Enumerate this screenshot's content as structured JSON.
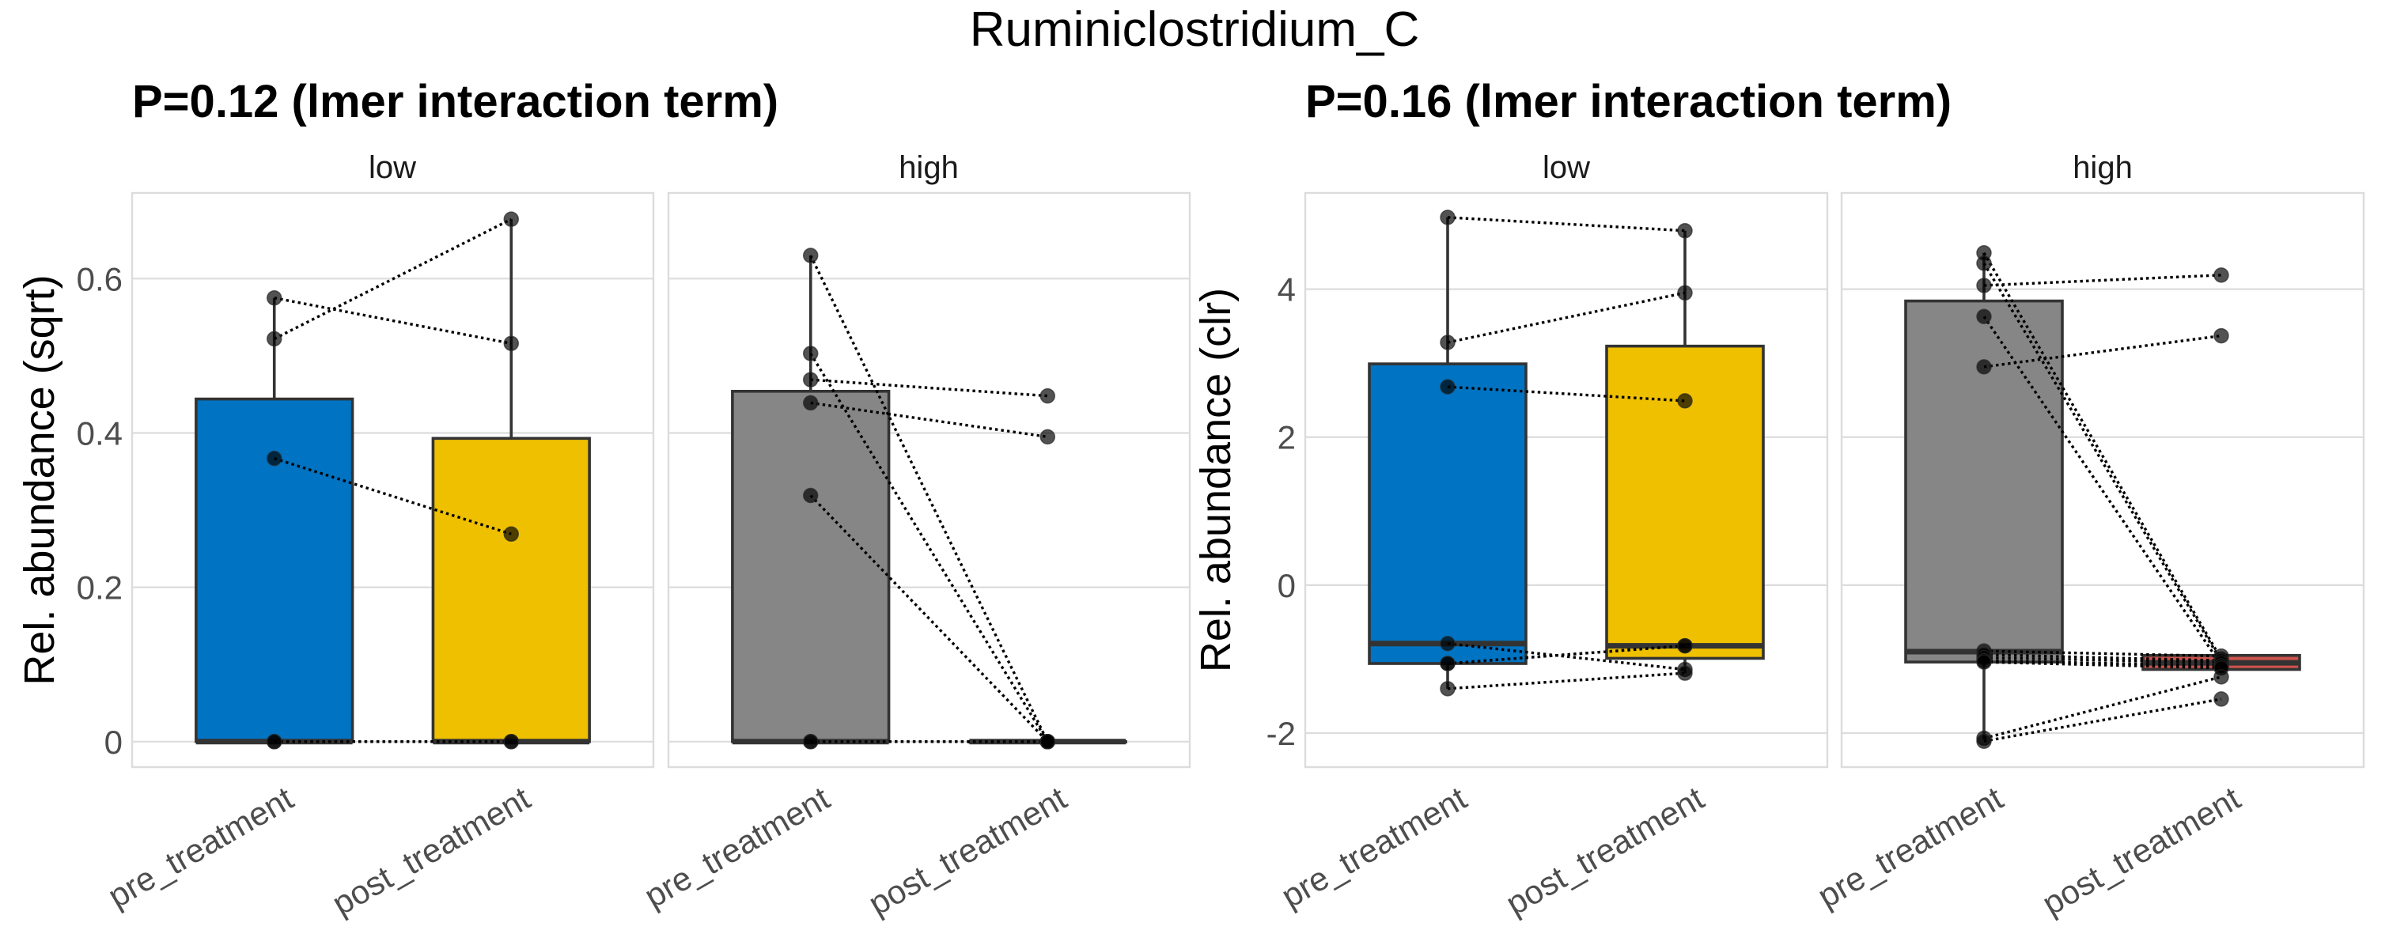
{
  "chart_data": {
    "type": "box",
    "title": "Ruminiclostridium_C",
    "panels": [
      {
        "subtitle": "P=0.12 (lmer interaction term)",
        "ylabel": "Rel. abundance (sqrt)",
        "ylim": [
          -0.033,
          0.711
        ],
        "yticks": [
          0,
          0.2,
          0.4,
          0.6
        ],
        "ytick_labels": [
          "0",
          "0.2",
          "0.4",
          "0.6"
        ],
        "grid": true,
        "facets": [
          {
            "label": "low",
            "categories": [
              "pre_treatment",
              "post_treatment"
            ],
            "boxes": [
              {
                "category": "pre_treatment",
                "color": "#0073C2",
                "q1": 0,
                "median": 0,
                "q3": 0.444,
                "whisker_low": 0,
                "whisker_high": 0.575
              },
              {
                "category": "post_treatment",
                "color": "#EFC000",
                "q1": 0,
                "median": 0,
                "q3": 0.393,
                "whisker_low": 0,
                "whisker_high": 0.677
              }
            ],
            "pairs": [
              {
                "pre": 0.522,
                "post": 0.677
              },
              {
                "pre": 0.575,
                "post": 0.516
              },
              {
                "pre": 0.367,
                "post": 0.269
              },
              {
                "pre": 0,
                "post": 0
              },
              {
                "pre": 0,
                "post": 0
              }
            ]
          },
          {
            "label": "high",
            "categories": [
              "pre_treatment",
              "post_treatment"
            ],
            "boxes": [
              {
                "category": "pre_treatment",
                "color": "#868686",
                "q1": 0,
                "median": 0,
                "q3": 0.454,
                "whisker_low": 0,
                "whisker_high": 0.63
              },
              {
                "category": "post_treatment",
                "color": "#CD534C",
                "q1": 0,
                "median": 0,
                "q3": 0,
                "whisker_low": 0,
                "whisker_high": 0
              }
            ],
            "pairs": [
              {
                "pre": 0.63,
                "post": 0
              },
              {
                "pre": 0.503,
                "post": 0
              },
              {
                "pre": 0.469,
                "post": 0.448
              },
              {
                "pre": 0.439,
                "post": 0.395
              },
              {
                "pre": 0.319,
                "post": 0
              },
              {
                "pre": 0,
                "post": 0
              },
              {
                "pre": 0,
                "post": 0
              }
            ]
          }
        ]
      },
      {
        "subtitle": "P=0.16 (lmer interaction term)",
        "ylabel": "Rel. abundance (clr)",
        "ylim": [
          -2.46,
          5.3
        ],
        "yticks": [
          -2,
          0,
          2,
          4
        ],
        "ytick_labels": [
          "-2",
          "0",
          "2",
          "4"
        ],
        "grid": true,
        "facets": [
          {
            "label": "low",
            "categories": [
              "pre_treatment",
              "post_treatment"
            ],
            "boxes": [
              {
                "category": "pre_treatment",
                "color": "#0073C2",
                "q1": -1.06,
                "median": -0.79,
                "q3": 2.99,
                "whisker_low": -1.4,
                "whisker_high": 4.97
              },
              {
                "category": "post_treatment",
                "color": "#EFC000",
                "q1": -0.99,
                "median": -0.82,
                "q3": 3.23,
                "whisker_low": -1.19,
                "whisker_high": 4.79
              }
            ],
            "pairs": [
              {
                "pre": 4.97,
                "post": 4.79
              },
              {
                "pre": 3.28,
                "post": 3.95
              },
              {
                "pre": 2.68,
                "post": 2.49
              },
              {
                "pre": -0.79,
                "post": -1.14
              },
              {
                "pre": -1.06,
                "post": -0.82
              },
              {
                "pre": -1.06,
                "post": -0.82
              },
              {
                "pre": -1.4,
                "post": -1.19
              }
            ]
          },
          {
            "label": "high",
            "categories": [
              "pre_treatment",
              "post_treatment"
            ],
            "boxes": [
              {
                "category": "pre_treatment",
                "color": "#868686",
                "q1": -1.04,
                "median": -0.9,
                "q3": 3.84,
                "whisker_low": -2.09,
                "whisker_high": 4.49
              },
              {
                "category": "post_treatment",
                "color": "#CD534C",
                "q1": -1.14,
                "median": -1.05,
                "q3": -0.95,
                "whisker_low": -1.14,
                "whisker_high": -0.95
              }
            ],
            "pairs": [
              {
                "pre": 4.49,
                "post": -1.0
              },
              {
                "pre": 4.35,
                "post": -1.03
              },
              {
                "pre": 4.05,
                "post": 4.19
              },
              {
                "pre": 3.63,
                "post": -1.08
              },
              {
                "pre": 2.95,
                "post": 3.37
              },
              {
                "pre": -0.89,
                "post": -0.96
              },
              {
                "pre": -0.94,
                "post": -1.02
              },
              {
                "pre": -0.98,
                "post": -1.05
              },
              {
                "pre": -1.02,
                "post": -1.09
              },
              {
                "pre": -1.04,
                "post": -1.12
              },
              {
                "pre": -2.07,
                "post": -1.24
              },
              {
                "pre": -2.11,
                "post": -1.54
              }
            ]
          }
        ]
      }
    ]
  }
}
